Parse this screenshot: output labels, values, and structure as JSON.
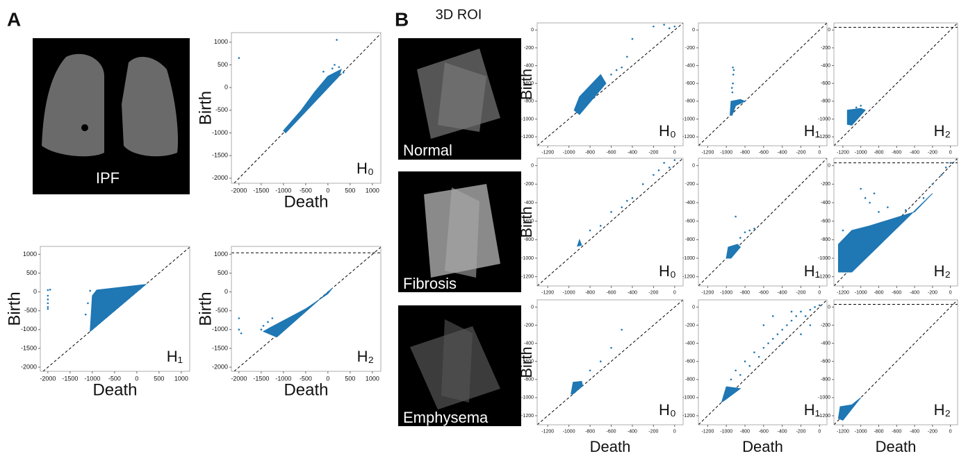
{
  "figure": {
    "panel_labels": [
      "A",
      "B"
    ],
    "ipf": "IPF",
    "roi": "3D ROI",
    "rows": [
      "Normal",
      "Fibrosis",
      "Emphysema"
    ]
  },
  "chart_data": [
    {
      "type": "scatter",
      "label": "H₀",
      "xlabel": "Death",
      "ylabel": "Birth",
      "xlim": [
        -2170,
        1190
      ],
      "ylim": [
        -2110,
        1210
      ],
      "xticks": [
        -2000,
        -1500,
        -1000,
        -500,
        0,
        500,
        1000
      ],
      "yticks": [
        -2000,
        -1500,
        -1000,
        -500,
        0,
        500,
        1000
      ],
      "series": [
        {
          "color": "#1f77b4",
          "x": [
            -1000,
            -600,
            -300,
            0,
            200,
            300,
            250,
            -950
          ],
          "y": [
            -950,
            -500,
            -100,
            250,
            350,
            400,
            250,
            -1000
          ]
        },
        {
          "color": "#1f77b4",
          "x": [
            200,
            250,
            -2000,
            150,
            -100,
            100,
            350
          ],
          "y": [
            1050,
            450,
            650,
            500,
            350,
            420,
            330
          ]
        }
      ]
    },
    {
      "type": "scatter",
      "label": "H₁",
      "xlabel": "Death",
      "ylabel": "Birth",
      "xlim": [
        -2170,
        1190
      ],
      "ylim": [
        -2110,
        1210
      ],
      "xticks": [
        -2000,
        -1500,
        -1000,
        -500,
        0,
        500,
        1000
      ],
      "yticks": [
        -2000,
        -1500,
        -1000,
        -500,
        0,
        500,
        1000
      ],
      "series": [
        {
          "color": "#1f77b4",
          "x": [
            -1050,
            -1000,
            -900,
            200,
            -1000
          ],
          "y": [
            -1050,
            -100,
            50,
            200,
            -1000
          ]
        },
        {
          "color": "#1f77b4",
          "x": [
            -2000,
            -2000,
            -2000,
            -2000,
            -2000,
            -2000,
            -1950,
            -1100,
            -1150,
            -1050
          ],
          "y": [
            50,
            -100,
            -200,
            -300,
            -400,
            -450,
            60,
            -300,
            -600,
            30
          ]
        }
      ]
    },
    {
      "type": "scatter",
      "label": "H₂",
      "xlabel": "Death",
      "ylabel": "Birth",
      "infinity": 1040,
      "xlim": [
        -2170,
        1190
      ],
      "ylim": [
        -2110,
        1210
      ],
      "xticks": [
        -2000,
        -1500,
        -1000,
        -500,
        0,
        500,
        1000
      ],
      "yticks": [
        -2000,
        -1500,
        -1000,
        -500,
        0,
        500,
        1000
      ],
      "series": [
        {
          "color": "#1f77b4",
          "x": [
            -1450,
            -1300,
            -900,
            -500,
            0,
            100,
            -1150
          ],
          "y": [
            -1050,
            -950,
            -700,
            -450,
            -50,
            100,
            -1200
          ]
        },
        {
          "color": "#1f77b4",
          "x": [
            -2000,
            -1950,
            -2000,
            -1500,
            -1450,
            -1350,
            -1250
          ],
          "y": [
            -1000,
            -1100,
            -700,
            -1000,
            -900,
            -800,
            -700
          ]
        }
      ]
    },
    {
      "type": "scatter",
      "label": "H₀",
      "ylabel": "Birth",
      "xlim": [
        -1300,
        80
      ],
      "ylim": [
        -1300,
        80
      ],
      "xticks": [
        -1200,
        -1000,
        -800,
        -600,
        -400,
        -200,
        0
      ],
      "yticks": [
        -1200,
        -1000,
        -800,
        -600,
        -400,
        -200,
        0
      ],
      "series": [
        {
          "color": "#1f77b4",
          "x": [
            -950,
            -900,
            -700,
            -650,
            -900
          ],
          "y": [
            -900,
            -750,
            -500,
            -600,
            -950
          ]
        },
        {
          "color": "#1f77b4",
          "x": [
            -600,
            -550,
            -500,
            -450,
            -400,
            -200,
            -100,
            -50,
            0
          ],
          "y": [
            -500,
            -450,
            -420,
            -300,
            -100,
            40,
            60,
            20,
            40
          ]
        }
      ]
    },
    {
      "type": "scatter",
      "label": "H₁",
      "xlim": [
        -1300,
        80
      ],
      "ylim": [
        -1300,
        80
      ],
      "xticks": [
        -1200,
        -1000,
        -800,
        -600,
        -400,
        -200,
        0
      ],
      "yticks": [
        -1200,
        -1000,
        -800,
        -600,
        -400,
        -200,
        0
      ],
      "series": [
        {
          "color": "#1f77b4",
          "x": [
            -960,
            -950,
            -850,
            -800,
            -900,
            -940
          ],
          "y": [
            -950,
            -800,
            -780,
            -800,
            -850,
            -960
          ]
        },
        {
          "color": "#1f77b4",
          "x": [
            -930,
            -925,
            -930,
            -935,
            -920,
            -940
          ],
          "y": [
            -420,
            -500,
            -600,
            -700,
            -450,
            -650
          ]
        }
      ]
    },
    {
      "type": "scatter",
      "label": "H₂",
      "infinity": 30,
      "xlim": [
        -1300,
        80
      ],
      "ylim": [
        -1300,
        80
      ],
      "xticks": [
        -1200,
        -1000,
        -800,
        -600,
        -400,
        -200,
        0
      ],
      "yticks": [
        -1200,
        -1000,
        -800,
        -600,
        -400,
        -200,
        0
      ],
      "series": [
        {
          "color": "#1f77b4",
          "x": [
            -1150,
            -1150,
            -1000,
            -950,
            -1100
          ],
          "y": [
            -1060,
            -900,
            -880,
            -900,
            -1070
          ]
        },
        {
          "color": "#1f77b4",
          "x": [
            -1000,
            -1050
          ],
          "y": [
            -850,
            -870
          ]
        }
      ]
    },
    {
      "type": "scatter",
      "label": "H₀",
      "ylabel": "Birth",
      "xlim": [
        -1300,
        80
      ],
      "ylim": [
        -1300,
        80
      ],
      "xticks": [
        -1200,
        -1000,
        -800,
        -600,
        -400,
        -200,
        0
      ],
      "yticks": [
        -1200,
        -1000,
        -800,
        -600,
        -400,
        -200,
        0
      ],
      "series": [
        {
          "color": "#1f77b4",
          "x": [
            -920,
            -900,
            -880
          ],
          "y": [
            -870,
            -800,
            -860
          ]
        },
        {
          "color": "#1f77b4",
          "x": [
            -800,
            -700,
            -600,
            -500,
            -450,
            -400,
            -300,
            -200,
            -150,
            -100,
            -50,
            0
          ],
          "y": [
            -700,
            -650,
            -500,
            -450,
            -380,
            -350,
            -200,
            -100,
            -50,
            30,
            -20,
            60
          ]
        }
      ]
    },
    {
      "type": "scatter",
      "label": "H₁",
      "xlim": [
        -1300,
        80
      ],
      "ylim": [
        -1300,
        80
      ],
      "xticks": [
        -1200,
        -1000,
        -800,
        -600,
        -400,
        -200,
        0
      ],
      "yticks": [
        -1200,
        -1000,
        -800,
        -600,
        -400,
        -200,
        0
      ],
      "series": [
        {
          "color": "#1f77b4",
          "x": [
            -1000,
            -980,
            -880,
            -850,
            -950
          ],
          "y": [
            -1000,
            -880,
            -850,
            -880,
            -1000
          ]
        },
        {
          "color": "#1f77b4",
          "x": [
            -900,
            -850,
            -800,
            -750,
            -700
          ],
          "y": [
            -550,
            -780,
            -720,
            -700,
            -680
          ]
        }
      ]
    },
    {
      "type": "scatter",
      "label": "H₂",
      "infinity": 30,
      "xlim": [
        -1300,
        80
      ],
      "ylim": [
        -1300,
        80
      ],
      "xticks": [
        -1200,
        -1000,
        -800,
        -600,
        -400,
        -200,
        0
      ],
      "yticks": [
        -1200,
        -1000,
        -800,
        -600,
        -400,
        -200,
        0
      ],
      "series": [
        {
          "color": "#1f77b4",
          "x": [
            -1250,
            -1250,
            -1100,
            -900,
            -400,
            -200,
            -1100
          ],
          "y": [
            -1150,
            -850,
            -700,
            -650,
            -500,
            -300,
            -1150
          ]
        },
        {
          "color": "#1f77b4",
          "x": [
            -1000,
            -950,
            -900,
            -800,
            -700,
            -600,
            -500,
            -300,
            -200,
            -100,
            -50,
            0,
            -1200,
            -850
          ],
          "y": [
            -250,
            -350,
            -400,
            -500,
            -450,
            -600,
            -480,
            -350,
            -200,
            -100,
            -20,
            30,
            -700,
            -300
          ]
        }
      ]
    },
    {
      "type": "scatter",
      "label": "H₀",
      "ylabel": "Birth",
      "xlabel": "Death",
      "xlim": [
        -1300,
        80
      ],
      "ylim": [
        -1300,
        80
      ],
      "xticks": [
        -1200,
        -1000,
        -800,
        -600,
        -400,
        -200,
        0
      ],
      "yticks": [
        -1200,
        -1000,
        -800,
        -600,
        -400,
        -200,
        0
      ],
      "series": [
        {
          "color": "#1f77b4",
          "x": [
            -980,
            -960,
            -880,
            -870,
            -960
          ],
          "y": [
            -960,
            -830,
            -820,
            -870,
            -960
          ]
        },
        {
          "color": "#1f77b4",
          "x": [
            -800,
            -700,
            -600,
            -500
          ],
          "y": [
            -700,
            -600,
            -450,
            -250
          ]
        }
      ]
    },
    {
      "type": "scatter",
      "label": "H₁",
      "xlabel": "Death",
      "xlim": [
        -1300,
        80
      ],
      "ylim": [
        -1300,
        80
      ],
      "xticks": [
        -1200,
        -1000,
        -800,
        -600,
        -400,
        -200,
        0
      ],
      "yticks": [
        -1200,
        -1000,
        -800,
        -600,
        -400,
        -200,
        0
      ],
      "series": [
        {
          "color": "#1f77b4",
          "x": [
            -1050,
            -1000,
            -850,
            -1020
          ],
          "y": [
            -1050,
            -880,
            -900,
            -1030
          ]
        },
        {
          "color": "#1f77b4",
          "x": [
            -950,
            -900,
            -850,
            -800,
            -750,
            -700,
            -650,
            -600,
            -550,
            -500,
            -450,
            -400,
            -350,
            -300,
            -250,
            -200,
            -150,
            -100,
            -50,
            0,
            -600,
            -500,
            -400,
            -300,
            -200,
            -100
          ],
          "y": [
            -800,
            -700,
            -750,
            -600,
            -650,
            -500,
            -550,
            -450,
            -400,
            -350,
            -300,
            -250,
            -200,
            -150,
            -100,
            -50,
            -100,
            -30,
            0,
            20,
            -200,
            -100,
            -400,
            -50,
            -300,
            -200
          ]
        }
      ]
    },
    {
      "type": "scatter",
      "label": "H₂",
      "xlabel": "Death",
      "infinity": 30,
      "xlim": [
        -1300,
        80
      ],
      "ylim": [
        -1300,
        80
      ],
      "xticks": [
        -1200,
        -1000,
        -800,
        -600,
        -400,
        -200,
        0
      ],
      "yticks": [
        -1200,
        -1000,
        -800,
        -600,
        -400,
        -200,
        0
      ],
      "series": [
        {
          "color": "#1f77b4",
          "x": [
            -1250,
            -1230,
            -1100,
            -1000,
            -1200
          ],
          "y": [
            -1230,
            -1100,
            -1080,
            -1000,
            -1250
          ]
        },
        {
          "color": "#1f77b4",
          "x": [
            -1050
          ],
          "y": [
            -1050
          ]
        }
      ]
    }
  ]
}
